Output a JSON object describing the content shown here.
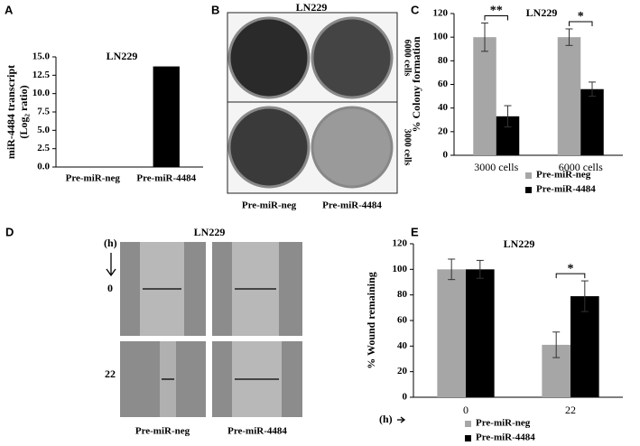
{
  "chart_data": [
    {
      "type": "bar",
      "panel": "A",
      "title": "LN229",
      "ylabel": [
        "miR-4484 transcript",
        "(Log₂ ratio)"
      ],
      "categories": [
        "Pre-miR-neg",
        "Pre-miR-4484"
      ],
      "series": [
        {
          "name": null,
          "color": "#000000",
          "values": [
            0,
            13.7
          ]
        }
      ],
      "ylim": [
        0,
        15
      ],
      "yticks": [
        {
          "value": 0,
          "label": "0.0"
        },
        {
          "value": 2.5,
          "label": "2.5"
        },
        {
          "value": 5,
          "label": "5.0"
        },
        {
          "value": 7.5,
          "label": "7.5"
        },
        {
          "value": 10,
          "label": "10.0"
        },
        {
          "value": 12.5,
          "label": "12.5"
        },
        {
          "value": 15,
          "label": "15.0"
        }
      ]
    },
    {
      "type": "bar",
      "panel": "C",
      "title": "LN229",
      "ylabel": [
        "% Colony formation"
      ],
      "categories": [
        "3000 cells",
        "6000 cells"
      ],
      "series": [
        {
          "name": "Pre-miR-neg",
          "color": "#a6a6a6",
          "values": [
            100,
            100
          ],
          "errors": [
            12,
            7
          ]
        },
        {
          "name": "Pre-miR-4484",
          "color": "#000000",
          "values": [
            33,
            56
          ],
          "errors": [
            9,
            6
          ]
        }
      ],
      "significance": [
        "**",
        "*"
      ],
      "ylim": [
        0,
        120
      ],
      "yticks": [
        0,
        20,
        40,
        60,
        80,
        100,
        120
      ]
    },
    {
      "type": "bar",
      "panel": "E",
      "title": "LN229",
      "ylabel": [
        "% Wound remaining"
      ],
      "xlabel": "(h)",
      "categories": [
        "0",
        "22"
      ],
      "series": [
        {
          "name": "Pre-miR-neg",
          "color": "#a6a6a6",
          "values": [
            100,
            41
          ],
          "errors": [
            8,
            10
          ]
        },
        {
          "name": "Pre-miR-4484",
          "color": "#000000",
          "values": [
            100,
            79
          ],
          "errors": [
            7,
            12
          ]
        }
      ],
      "significance": [
        null,
        "*"
      ],
      "ylim": [
        0,
        120
      ],
      "yticks": [
        0,
        20,
        40,
        60,
        80,
        100,
        120
      ]
    }
  ],
  "image_panels": [
    {
      "panel": "B",
      "title": "LN229",
      "row_labels": [
        "6000 cells",
        "3000 cells"
      ],
      "col_labels": [
        "Pre-miR-neg",
        "Pre-miR-4484"
      ]
    },
    {
      "panel": "D",
      "title": "LN229",
      "time_label": "(h)",
      "row_labels": [
        "0",
        "22"
      ],
      "col_labels": [
        "Pre-miR-neg",
        "Pre-miR-4484"
      ]
    }
  ]
}
